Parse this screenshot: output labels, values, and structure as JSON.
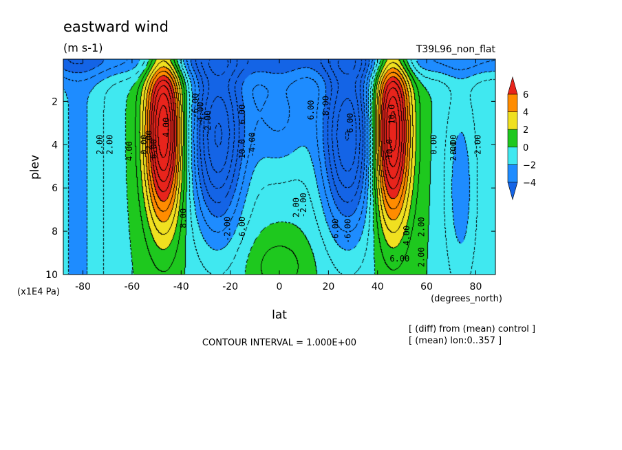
{
  "chart_data": {
    "type": "heatmap",
    "title": "eastward wind",
    "units": "(m s-1)",
    "run_label": "T39L96_non_flat",
    "xlabel": "lat",
    "x_units": "(degrees_north)",
    "ylabel": "plev",
    "y_units": "(x1E4 Pa)",
    "xlim": [
      -88,
      88
    ],
    "ylim": [
      10,
      0.05
    ],
    "x_ticks": [
      "-80",
      "-60",
      "-40",
      "-20",
      "0",
      "20",
      "40",
      "60",
      "80"
    ],
    "x_tick_values": [
      -80,
      -60,
      -40,
      -20,
      0,
      20,
      40,
      60,
      80
    ],
    "y_ticks": [
      "2",
      "4",
      "6",
      "8",
      "10"
    ],
    "y_tick_values": [
      2,
      4,
      6,
      8,
      10
    ],
    "contour_interval_text": "CONTOUR INTERVAL = 1.000E+00",
    "notes": [
      "[ (diff) from (mean) control ]",
      "[ (mean) lon:0..357 ]"
    ],
    "colorbar": {
      "labels": [
        "6",
        "4",
        "2",
        "0",
        "−2",
        "−4"
      ],
      "values": [
        6,
        4,
        2,
        0,
        -2,
        -4
      ],
      "colors": [
        "#e8241c",
        "#ff8c00",
        "#f0e020",
        "#1ec81e",
        "#40e8f0",
        "#1e8cff",
        "#1464e6"
      ]
    },
    "contour_labels": [
      "6.00",
      "4.00",
      "2.00",
      "0.00",
      "-2.00",
      "-4.00",
      "-6.00",
      "8.00",
      "10.0",
      "6.00",
      "2.00",
      "0.00",
      "2.00",
      "2.00",
      "-2.00",
      "-4.00",
      "-6.00",
      "10.0",
      "4.00",
      "6.00",
      "2.00",
      "0.00",
      "2.00",
      "2.00",
      "2.00",
      "-6.00",
      "-6.00",
      "-2.00",
      "6.00",
      "8.00",
      "6.00",
      "10.0",
      "4.00",
      "2.00"
    ],
    "fields": {
      "jets": [
        {
          "lat": -47,
          "plev": 2.8,
          "max": 11
        },
        {
          "lat": 46,
          "plev": 2.8,
          "max": 11
        }
      ],
      "easterly_cores": [
        {
          "lat": -25,
          "plev": 2.6,
          "min": -8
        },
        {
          "lat": 28,
          "plev": 2.6,
          "min": -8
        }
      ],
      "equatorial_surface_positive": {
        "lat": 0,
        "plev": 9.4,
        "max": 1
      }
    }
  }
}
